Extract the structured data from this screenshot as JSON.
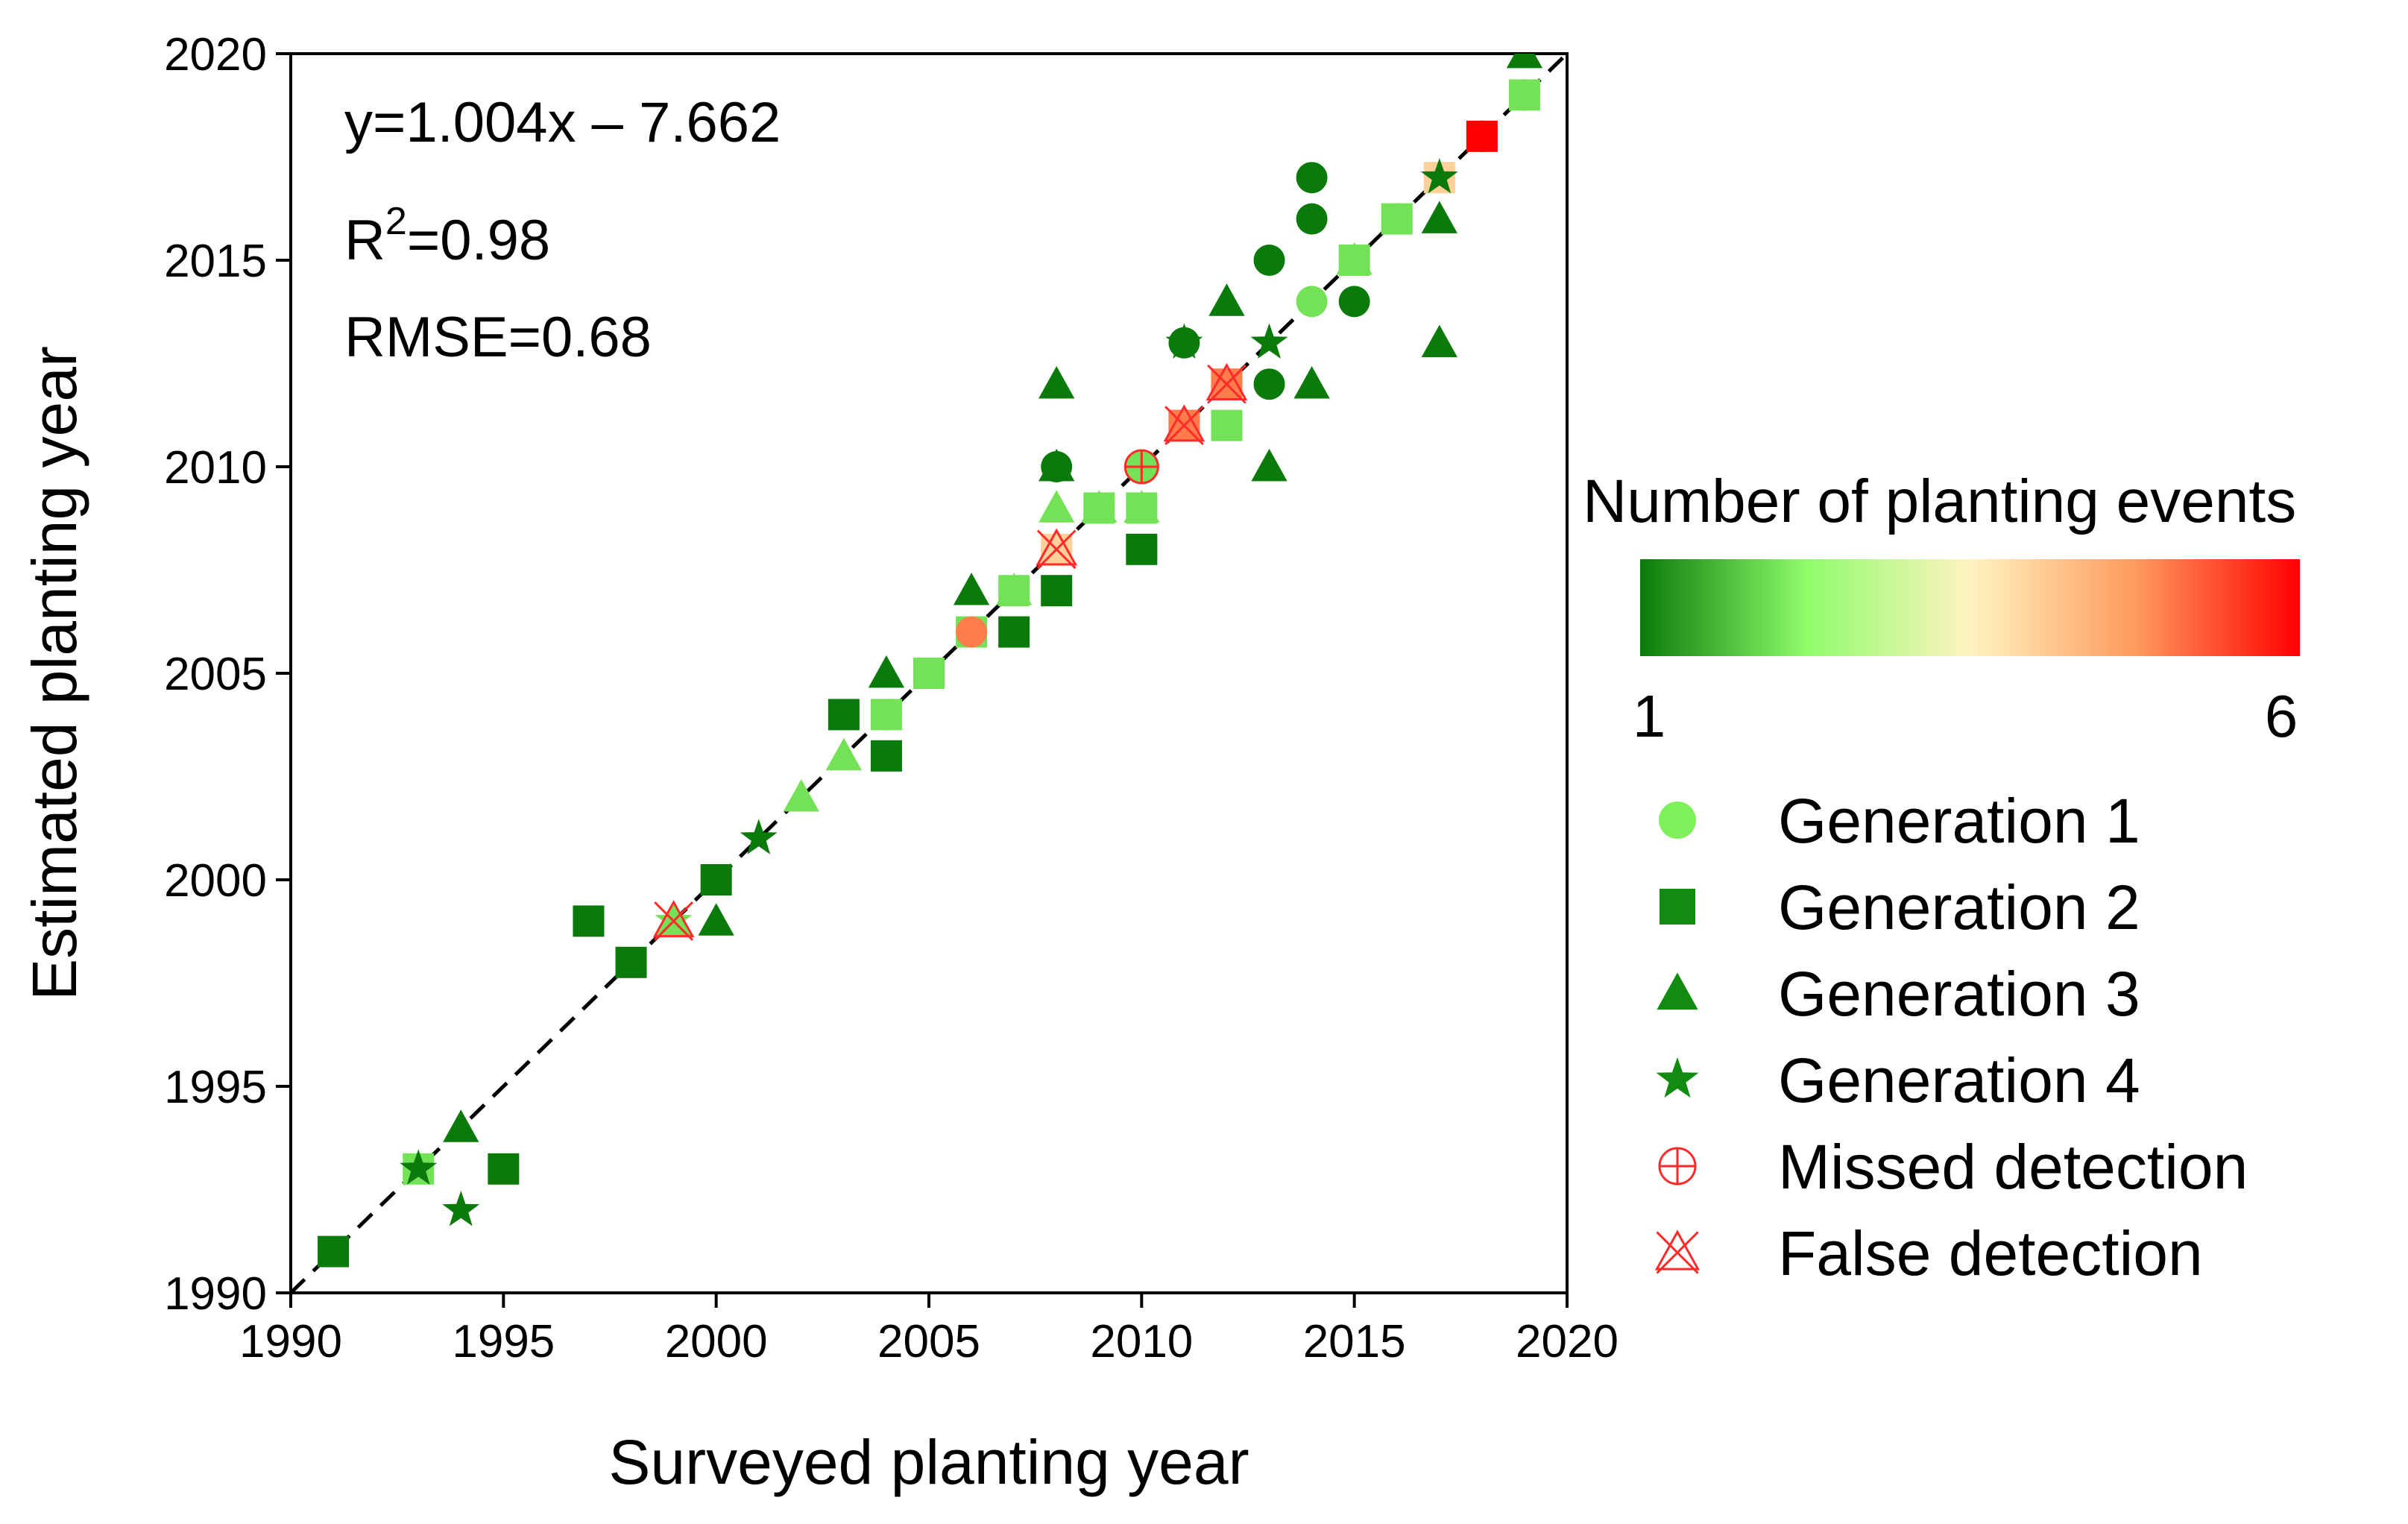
{
  "chart_data": {
    "type": "scatter",
    "title": "",
    "xlabel": "Surveyed planting year",
    "ylabel": "Estimated planting year",
    "xlim": [
      1990,
      2020
    ],
    "ylim": [
      1990,
      2020
    ],
    "xticks": [
      "1990",
      "1995",
      "2000",
      "2005",
      "2010",
      "2015",
      "2020"
    ],
    "yticks": [
      "1990",
      "1995",
      "2000",
      "2005",
      "2010",
      "2015",
      "2020"
    ],
    "grid": false,
    "reference_line": {
      "type": "1:1",
      "style": "dashed",
      "color": "#000000"
    },
    "annotations": {
      "equation": "y=1.004x – 7.662",
      "r2_label": "R",
      "r2_sup": "2",
      "r2_value": "=0.98",
      "rmse": "RMSE=0.68"
    },
    "colorbar": {
      "title": "Number of planting events",
      "min_label": "1",
      "max_label": "6",
      "min": 1,
      "max": 6,
      "colors": [
        "#0a7a0a",
        "#8efc6a",
        "#fff3c0",
        "#ff9b5e",
        "#ff0000"
      ]
    },
    "legend": [
      {
        "label": "Generation 1",
        "marker": "circle",
        "color": "#7df05a"
      },
      {
        "label": "Generation 2",
        "marker": "square",
        "color": "#118c11"
      },
      {
        "label": "Generation 3",
        "marker": "triangle",
        "color": "#118c11"
      },
      {
        "label": "Generation 4",
        "marker": "star",
        "color": "#118c11"
      },
      {
        "label": "Missed detection",
        "marker": "circle-plus",
        "color": "#ff2a2a"
      },
      {
        "label": "False detection",
        "marker": "triangle-x",
        "color": "#ff2a2a"
      }
    ],
    "series": [
      {
        "name": "Generation 1",
        "marker": "circle",
        "points": [
          [
            2008,
            2010,
            1
          ],
          [
            2010,
            2010,
            2
          ],
          [
            2011,
            2013,
            1
          ],
          [
            2012,
            2012,
            5
          ],
          [
            2013,
            2015,
            1
          ],
          [
            2013,
            2012,
            1
          ],
          [
            2014,
            2017,
            1
          ],
          [
            2014,
            2016,
            1
          ],
          [
            2014,
            2014,
            2
          ],
          [
            2015,
            2014,
            1
          ],
          [
            2016,
            2016,
            2
          ],
          [
            2017,
            2017,
            4
          ],
          [
            2018,
            2018,
            6
          ],
          [
            2019,
            2019,
            2
          ],
          [
            2006,
            2006,
            5
          ],
          [
            2004,
            2004,
            2
          ]
        ]
      },
      {
        "name": "Generation 2",
        "marker": "square",
        "points": [
          [
            1991,
            1991,
            1
          ],
          [
            1993,
            1993,
            2
          ],
          [
            1995,
            1993,
            1
          ],
          [
            1997,
            1999,
            1
          ],
          [
            1998,
            1998,
            1
          ],
          [
            2000,
            2000,
            1
          ],
          [
            2003,
            2004,
            1
          ],
          [
            2004,
            2003,
            1
          ],
          [
            2004,
            2004,
            2
          ],
          [
            2005,
            2005,
            2
          ],
          [
            2006,
            2006,
            2
          ],
          [
            2007,
            2006,
            1
          ],
          [
            2007,
            2007,
            2
          ],
          [
            2008,
            2007,
            1
          ],
          [
            2008,
            2008,
            4
          ],
          [
            2009,
            2009,
            2
          ],
          [
            2010,
            2008,
            1
          ],
          [
            2010,
            2009,
            2
          ],
          [
            2011,
            2011,
            5
          ],
          [
            2012,
            2011,
            2
          ],
          [
            2012,
            2012,
            5
          ],
          [
            2015,
            2015,
            2
          ],
          [
            2016,
            2016,
            2
          ],
          [
            2017,
            2017,
            4
          ],
          [
            2018,
            2018,
            6
          ],
          [
            2019,
            2019,
            2
          ]
        ]
      },
      {
        "name": "Generation 3",
        "marker": "triangle",
        "points": [
          [
            1994,
            1994,
            1
          ],
          [
            1999,
            1999,
            2
          ],
          [
            2000,
            1999,
            1
          ],
          [
            2002,
            2002,
            2
          ],
          [
            2003,
            2003,
            2
          ],
          [
            2004,
            2005,
            1
          ],
          [
            2006,
            2007,
            1
          ],
          [
            2007,
            2007,
            2
          ],
          [
            2008,
            2012,
            1
          ],
          [
            2008,
            2010,
            1
          ],
          [
            2008,
            2009,
            2
          ],
          [
            2008,
            2008,
            4
          ],
          [
            2009,
            2009,
            2
          ],
          [
            2010,
            2009,
            2
          ],
          [
            2011,
            2011,
            5
          ],
          [
            2012,
            2014,
            1
          ],
          [
            2013,
            2010,
            1
          ],
          [
            2014,
            2012,
            1
          ],
          [
            2015,
            2015,
            2
          ],
          [
            2017,
            2016,
            1
          ],
          [
            2017,
            2013,
            1
          ],
          [
            2019,
            2020,
            1
          ]
        ]
      },
      {
        "name": "Generation 4",
        "marker": "star",
        "points": [
          [
            1993,
            1993,
            1
          ],
          [
            1994,
            1992,
            1
          ],
          [
            1999,
            1999,
            2
          ],
          [
            2001,
            2001,
            1
          ],
          [
            2011,
            2013,
            1
          ],
          [
            2013,
            2013,
            1
          ],
          [
            2017,
            2017,
            1
          ]
        ]
      },
      {
        "name": "Missed detection",
        "marker": "circle-plus",
        "points": [
          [
            2010,
            2010
          ]
        ]
      },
      {
        "name": "False detection",
        "marker": "triangle-x",
        "points": [
          [
            1999,
            1999
          ],
          [
            2008,
            2008
          ],
          [
            2011,
            2011
          ],
          [
            2012,
            2012
          ]
        ]
      }
    ]
  }
}
